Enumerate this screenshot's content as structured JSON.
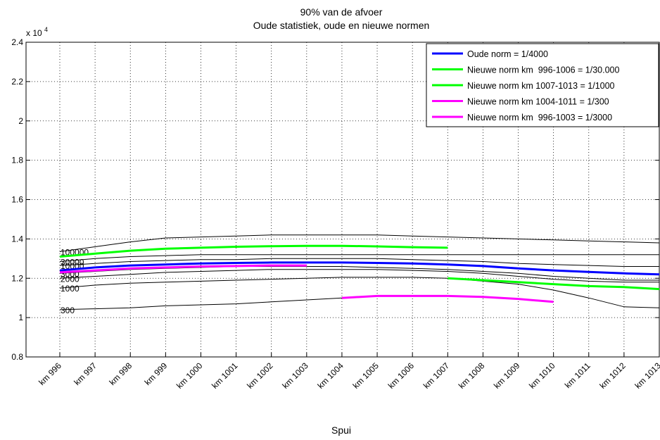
{
  "chart_data": {
    "type": "line",
    "title": "90% van de afvoer",
    "subtitle": "Oude statistiek, oude en nieuwe normen",
    "xlabel": "Spui",
    "ylabel": "",
    "y_multiplier_label": "x 10",
    "y_multiplier_exp": "4",
    "ylim": [
      0.8,
      2.4
    ],
    "yticks": [
      "0.8",
      "1",
      "1.2",
      "1.4",
      "1.6",
      "1.8",
      "2",
      "2.2",
      "2.4"
    ],
    "ytick_values": [
      0.8,
      1.0,
      1.2,
      1.4,
      1.6,
      1.8,
      2.0,
      2.2,
      2.4
    ],
    "categories": [
      "km 996",
      "km 997",
      "km 998",
      "km 999",
      "km 1000",
      "km 1001",
      "km 1002",
      "km 1003",
      "km 1004",
      "km 1005",
      "km 1006",
      "km 1007",
      "km 1008",
      "km 1009",
      "km 1010",
      "km 1011",
      "km 1012",
      "km 1013"
    ],
    "grid": true,
    "legend_position": "top-right",
    "reference_curves": [
      {
        "label": "100000",
        "values": [
          1.335,
          1.36,
          1.385,
          1.405,
          1.41,
          1.415,
          1.42,
          1.42,
          1.42,
          1.42,
          1.415,
          1.41,
          1.405,
          1.4,
          1.395,
          1.39,
          1.385,
          1.38
        ]
      },
      {
        "label": "30000",
        "values": [
          1.285,
          1.3,
          1.31,
          1.315,
          1.32,
          1.32,
          1.32,
          1.32,
          1.32,
          1.32,
          1.32,
          1.32,
          1.32,
          1.32,
          1.32,
          1.32,
          1.32,
          1.32
        ]
      },
      {
        "label": "10000",
        "values": [
          1.265,
          1.275,
          1.285,
          1.29,
          1.295,
          1.295,
          1.3,
          1.3,
          1.3,
          1.3,
          1.295,
          1.29,
          1.285,
          1.275,
          1.27,
          1.265,
          1.26,
          1.26
        ]
      },
      {
        "label": "3000",
        "values": [
          1.225,
          1.235,
          1.245,
          1.25,
          1.255,
          1.26,
          1.26,
          1.26,
          1.26,
          1.255,
          1.25,
          1.245,
          1.235,
          1.225,
          1.21,
          1.2,
          1.19,
          1.19
        ]
      },
      {
        "label": "2000",
        "values": [
          1.2,
          1.21,
          1.22,
          1.23,
          1.235,
          1.24,
          1.245,
          1.245,
          1.245,
          1.245,
          1.24,
          1.235,
          1.225,
          1.21,
          1.195,
          1.185,
          1.18,
          1.18
        ]
      },
      {
        "label": "1000",
        "values": [
          1.15,
          1.165,
          1.175,
          1.18,
          1.185,
          1.19,
          1.195,
          1.2,
          1.205,
          1.205,
          1.205,
          1.2,
          1.185,
          1.17,
          1.14,
          1.1,
          1.055,
          1.05
        ]
      },
      {
        "label": "300",
        "values": [
          1.04,
          1.045,
          1.05,
          1.06,
          1.065,
          1.07,
          1.08,
          1.09,
          1.1,
          1.11,
          1.11,
          1.11,
          1.105,
          1.095,
          1.08,
          null,
          null,
          null
        ]
      }
    ],
    "series": [
      {
        "name": "Oude norm = 1/4000",
        "color": "#0000ff",
        "values": [
          1.24,
          1.255,
          1.265,
          1.27,
          1.275,
          1.278,
          1.28,
          1.28,
          1.28,
          1.278,
          1.275,
          1.27,
          1.262,
          1.25,
          1.24,
          1.232,
          1.225,
          1.22
        ]
      },
      {
        "name": "Nieuwe norm km  996-1006 = 1/30.000",
        "color": "#00ff00",
        "values": [
          1.31,
          1.325,
          1.34,
          1.35,
          1.355,
          1.36,
          1.363,
          1.365,
          1.365,
          1.362,
          1.358,
          1.355,
          null,
          null,
          null,
          null,
          null,
          null
        ]
      },
      {
        "name": "Nieuwe norm km 1007-1013 = 1/1000",
        "color": "#00ff00",
        "values": [
          null,
          null,
          null,
          null,
          null,
          null,
          null,
          null,
          null,
          null,
          null,
          1.2,
          1.19,
          1.18,
          1.17,
          1.16,
          1.155,
          1.145
        ]
      },
      {
        "name": "Nieuwe norm km 1004-1011 = 1/300",
        "color": "#ff00ff",
        "values": [
          null,
          null,
          null,
          null,
          null,
          null,
          null,
          null,
          1.1,
          1.11,
          1.11,
          1.11,
          1.105,
          1.095,
          1.08,
          null,
          null,
          null
        ]
      },
      {
        "name": "Nieuwe norm km  996-1003 = 1/3000",
        "color": "#ff00ff",
        "values": [
          1.23,
          1.24,
          1.25,
          1.255,
          1.26,
          1.262,
          1.265,
          1.265,
          null,
          null,
          null,
          null,
          null,
          null,
          null,
          null,
          null,
          null
        ]
      }
    ]
  }
}
